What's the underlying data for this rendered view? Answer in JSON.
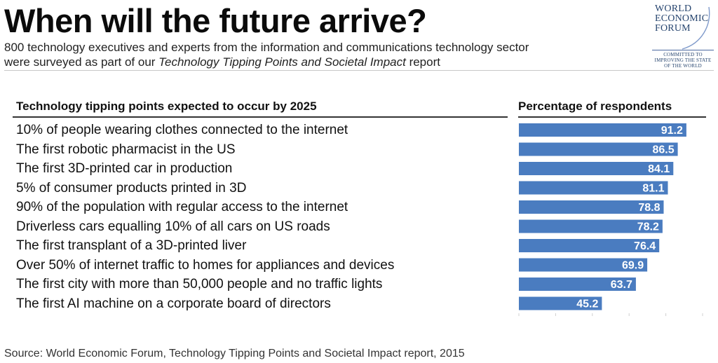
{
  "header": {
    "title": "When will the future arrive?",
    "subtitle_line1": "800 technology executives and experts from the information and communications technology sector",
    "subtitle_line2_prefix": "were surveyed as part of our ",
    "subtitle_line2_italic": "Technology Tipping Points and Societal Impact",
    "subtitle_line2_suffix": " report"
  },
  "logo": {
    "name_line1": "WORLD",
    "name_line2": "ECONOMIC",
    "name_line3": "FORUM",
    "motto_line1": "COMMITTED TO",
    "motto_line2": "IMPROVING THE STATE",
    "motto_line3": "OF THE WORLD"
  },
  "chart_data": {
    "type": "bar",
    "orientation": "horizontal",
    "title": "When will the future arrive?",
    "category_header": "Technology tipping points expected to occur by 2025",
    "value_header": "Percentage of respondents",
    "categories": [
      "10% of people wearing clothes connected to the internet",
      "The first robotic pharmacist in the US",
      "The first 3D-printed car in production",
      "5% of consumer products printed in 3D",
      "90% of the population with regular access to the internet",
      "Driverless cars equalling 10% of all cars on US roads",
      "The first transplant of a 3D-printed liver",
      "Over 50% of internet traffic to homes for appliances and devices",
      "The first city with more than 50,000 people and no traffic lights",
      "The first AI machine on a corporate board of directors"
    ],
    "values": [
      91.2,
      86.5,
      84.1,
      81.1,
      78.8,
      78.2,
      76.4,
      69.9,
      63.7,
      45.2
    ],
    "value_labels": [
      "91.2",
      "86.5",
      "84.1",
      "81.1",
      "78.8",
      "78.2",
      "76.4",
      "69.9",
      "63.7",
      "45.2"
    ],
    "xlim": [
      0,
      100
    ],
    "bar_color": "#4a7cc0",
    "label_color": "#ffffff",
    "grid": false
  },
  "footer": {
    "source": "Source: World Economic Forum, Technology Tipping Points and Societal Impact report, 2015"
  }
}
